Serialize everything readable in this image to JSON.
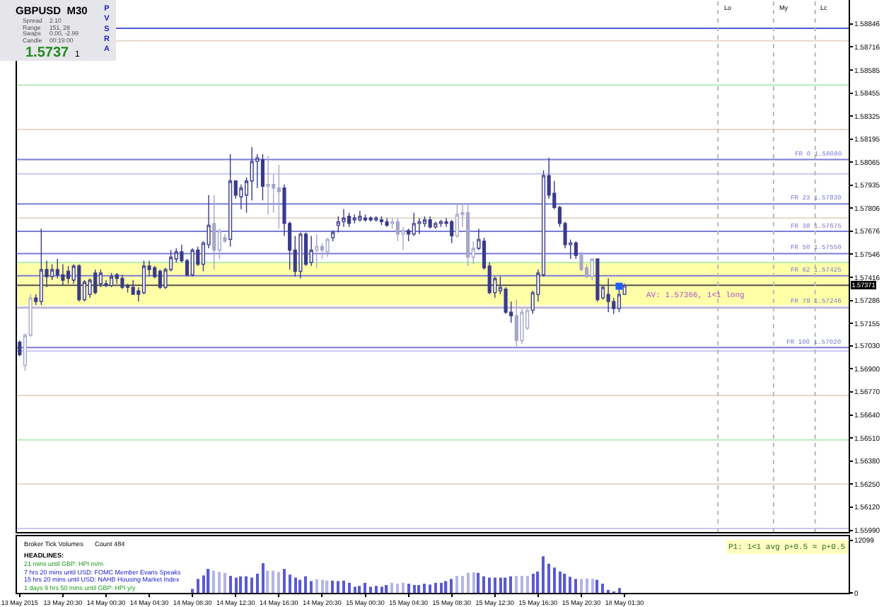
{
  "chart_data": [
    {
      "type": "candlestick",
      "title": "GBPUSD  M30",
      "annotations": [
        "Spread",
        "2.10",
        "Range",
        "151, 28",
        "Swaps",
        "0.00, -2.99",
        "Candle",
        "00:19:00",
        "1.5737",
        "1",
        "PVSRA",
        "Lo",
        "My",
        "Lc",
        {
          "text": "AV: 1.57366, 1<1 long",
          "y": 1.57366
        }
      ],
      "categories": [
        null,
        null,
        null,
        null,
        null,
        null,
        null,
        null,
        null,
        null,
        null,
        null,
        null,
        null,
        null,
        null,
        null,
        null,
        null,
        null,
        null,
        null,
        null,
        null,
        null,
        null,
        null,
        null,
        null,
        null,
        null,
        null,
        null,
        null,
        null,
        null,
        null,
        null,
        null,
        null,
        null,
        null,
        null,
        null,
        null,
        null,
        null,
        null,
        null,
        null,
        null,
        null,
        null,
        null,
        null,
        null,
        null,
        null,
        null,
        null,
        null,
        null,
        null,
        null,
        null,
        null,
        null,
        null,
        null,
        null,
        null,
        null,
        null,
        null,
        null,
        null,
        null,
        null,
        null,
        null,
        null,
        null,
        null,
        null,
        null,
        null,
        null,
        null,
        null,
        null,
        null,
        null,
        null,
        null,
        null,
        null,
        null,
        null,
        null,
        null,
        null,
        null,
        null,
        null,
        null,
        null,
        null,
        null,
        null,
        null,
        null,
        null,
        null,
        null,
        null,
        null,
        null,
        null,
        null,
        null,
        null,
        null,
        null,
        null,
        null,
        null,
        null,
        null,
        null,
        null,
        null,
        null,
        null,
        null,
        null,
        null,
        null,
        null,
        null,
        null,
        null,
        null,
        null,
        null,
        null,
        null,
        null,
        null,
        null,
        null,
        null,
        null,
        null,
        null
      ],
      "ohlc": [
        [
          1.5705,
          1.5706,
          1.5697,
          1.5698
        ],
        [
          1.5692,
          1.571,
          1.5689,
          1.5709
        ],
        [
          1.5709,
          1.5732,
          1.5708,
          1.573
        ],
        [
          1.573,
          1.5732,
          1.5726,
          1.5728
        ],
        [
          1.5728,
          1.5769,
          1.5726,
          1.5746
        ],
        [
          1.5746,
          1.5751,
          1.5736,
          1.5742
        ],
        [
          1.5742,
          1.5749,
          1.574,
          1.5746
        ],
        [
          1.5746,
          1.5752,
          1.5741,
          1.5743
        ],
        [
          1.5743,
          1.5749,
          1.5737,
          1.574
        ],
        [
          1.5745,
          1.5748,
          1.5738,
          1.5741
        ],
        [
          1.574,
          1.5749,
          1.5738,
          1.5748
        ],
        [
          1.5748,
          1.5749,
          1.5728,
          1.5729
        ],
        [
          1.5729,
          1.574,
          1.5728,
          1.5739
        ],
        [
          1.5732,
          1.5741,
          1.573,
          1.574
        ],
        [
          1.5744,
          1.5746,
          1.5732,
          1.5733
        ],
        [
          1.5738,
          1.5746,
          1.5736,
          1.5744
        ],
        [
          1.5738,
          1.574,
          1.5736,
          1.5737
        ],
        [
          1.5737,
          1.5744,
          1.5736,
          1.5742
        ],
        [
          1.5743,
          1.5744,
          1.5738,
          1.5741
        ],
        [
          1.5741,
          1.5743,
          1.5735,
          1.5736
        ],
        [
          1.5737,
          1.5738,
          1.5733,
          1.5736
        ],
        [
          1.5736,
          1.574,
          1.5732,
          1.5732
        ],
        [
          1.5734,
          1.5736,
          1.5728,
          1.5732
        ],
        [
          1.5733,
          1.5751,
          1.5732,
          1.5748
        ],
        [
          1.5748,
          1.5751,
          1.5742,
          1.5746
        ],
        [
          1.5747,
          1.5748,
          1.5741,
          1.5742
        ],
        [
          1.5745,
          1.5746,
          1.5735,
          1.5736
        ],
        [
          1.5736,
          1.5747,
          1.5735,
          1.5746
        ],
        [
          1.5746,
          1.5757,
          1.5745,
          1.5753
        ],
        [
          1.5752,
          1.5758,
          1.575,
          1.5756
        ],
        [
          1.5756,
          1.576,
          1.575,
          1.5751
        ],
        [
          1.5751,
          1.5752,
          1.5742,
          1.5743
        ],
        [
          1.5743,
          1.5758,
          1.5742,
          1.5757
        ],
        [
          1.5757,
          1.5759,
          1.5748,
          1.5749
        ],
        [
          1.5749,
          1.5762,
          1.5745,
          1.5761
        ],
        [
          1.576,
          1.5788,
          1.5758,
          1.5771
        ],
        [
          1.5772,
          1.5788,
          1.5746,
          1.5757
        ],
        [
          1.5757,
          1.5769,
          1.5752,
          1.5768
        ],
        [
          1.5764,
          1.5766,
          1.5761,
          1.5762
        ],
        [
          1.5763,
          1.5811,
          1.5759,
          1.5796
        ],
        [
          1.5796,
          1.5796,
          1.5786,
          1.5788
        ],
        [
          1.5787,
          1.5794,
          1.578,
          1.5792
        ],
        [
          1.5788,
          1.5798,
          1.5778,
          1.5796
        ],
        [
          1.5796,
          1.5815,
          1.5785,
          1.5807
        ],
        [
          1.5807,
          1.5811,
          1.5792,
          1.5809
        ],
        [
          1.5808,
          1.5811,
          1.5785,
          1.5793
        ],
        [
          1.5793,
          1.581,
          1.5777,
          1.5794
        ],
        [
          1.5794,
          1.58,
          1.5778,
          1.5792
        ],
        [
          1.5792,
          1.5805,
          1.5769,
          1.579
        ],
        [
          1.5792,
          1.5794,
          1.5765,
          1.5772
        ],
        [
          1.5772,
          1.5773,
          1.5746,
          1.5757
        ],
        [
          1.5757,
          1.5765,
          1.5742,
          1.5745
        ],
        [
          1.5745,
          1.5767,
          1.5741,
          1.5766
        ],
        [
          1.5766,
          1.5767,
          1.5748,
          1.5749
        ],
        [
          1.575,
          1.5765,
          1.5748,
          1.5757
        ],
        [
          1.5757,
          1.5766,
          1.5747,
          1.5759
        ],
        [
          1.5759,
          1.5761,
          1.5752,
          1.5757
        ],
        [
          1.5756,
          1.5764,
          1.5753,
          1.5763
        ],
        [
          1.5764,
          1.5768,
          1.5762,
          1.5767
        ],
        [
          1.5771,
          1.5776,
          1.5767,
          1.5773
        ],
        [
          1.5773,
          1.578,
          1.577,
          1.5775
        ],
        [
          1.5776,
          1.5778,
          1.577,
          1.5772
        ],
        [
          1.5774,
          1.5777,
          1.5772,
          1.5775
        ],
        [
          1.5774,
          1.5779,
          1.5773,
          1.5776
        ],
        [
          1.5775,
          1.5777,
          1.5773,
          1.5774
        ],
        [
          1.5775,
          1.5776,
          1.5773,
          1.5774
        ],
        [
          1.5774,
          1.5776,
          1.5773,
          1.5775
        ],
        [
          1.5774,
          1.5776,
          1.5771,
          1.5773
        ],
        [
          1.5773,
          1.5775,
          1.577,
          1.5771
        ],
        [
          1.5772,
          1.5775,
          1.5769,
          1.5773
        ],
        [
          1.5773,
          1.5775,
          1.5762,
          1.5766
        ],
        [
          1.5766,
          1.577,
          1.5757,
          1.5768
        ],
        [
          1.5768,
          1.5769,
          1.5762,
          1.5766
        ],
        [
          1.5766,
          1.5778,
          1.5765,
          1.5772
        ],
        [
          1.5772,
          1.5775,
          1.5766,
          1.5773
        ],
        [
          1.5772,
          1.5776,
          1.577,
          1.5774
        ],
        [
          1.5774,
          1.5776,
          1.5769,
          1.577
        ],
        [
          1.577,
          1.5773,
          1.5769,
          1.5772
        ],
        [
          1.5772,
          1.5774,
          1.577,
          1.5773
        ],
        [
          1.5773,
          1.5775,
          1.577,
          1.5772
        ],
        [
          1.5773,
          1.5774,
          1.5761,
          1.5765
        ],
        [
          1.5765,
          1.5783,
          1.5764,
          1.5777
        ],
        [
          1.5777,
          1.5783,
          1.577,
          1.5778
        ],
        [
          1.5778,
          1.5783,
          1.5748,
          1.5753
        ],
        [
          1.5753,
          1.5762,
          1.5749,
          1.5758
        ],
        [
          1.5758,
          1.5769,
          1.5757,
          1.5763
        ],
        [
          1.5762,
          1.5764,
          1.5746,
          1.5747
        ],
        [
          1.5748,
          1.575,
          1.5732,
          1.5733
        ],
        [
          1.5733,
          1.5742,
          1.573,
          1.5741
        ],
        [
          1.5734,
          1.5742,
          1.5732,
          1.5736
        ],
        [
          1.5735,
          1.5736,
          1.5721,
          1.5722
        ],
        [
          1.5722,
          1.5728,
          1.5716,
          1.572
        ],
        [
          1.572,
          1.5729,
          1.5702,
          1.5706
        ],
        [
          1.5706,
          1.5724,
          1.5704,
          1.5722
        ],
        [
          1.5713,
          1.5724,
          1.5712,
          1.5723
        ],
        [
          1.5723,
          1.5734,
          1.5721,
          1.5733
        ],
        [
          1.5732,
          1.5746,
          1.5728,
          1.5744
        ],
        [
          1.5743,
          1.5802,
          1.5742,
          1.5799
        ],
        [
          1.5799,
          1.5809,
          1.5786,
          1.5788
        ],
        [
          1.5789,
          1.5796,
          1.578,
          1.5781
        ],
        [
          1.5781,
          1.5782,
          1.577,
          1.5772
        ],
        [
          1.5772,
          1.5773,
          1.5758,
          1.576
        ],
        [
          1.576,
          1.5763,
          1.5752,
          1.5761
        ],
        [
          1.5761,
          1.5762,
          1.5752,
          1.5754
        ],
        [
          1.5754,
          1.5756,
          1.5745,
          1.5746
        ],
        [
          1.5747,
          1.5749,
          1.5741,
          1.5742
        ],
        [
          1.5742,
          1.5752,
          1.574,
          1.5752
        ],
        [
          1.5752,
          1.5752,
          1.5728,
          1.5729
        ],
        [
          1.573,
          1.5737,
          1.5729,
          1.5736
        ],
        [
          1.5732,
          1.5741,
          1.5722,
          1.5728
        ],
        [
          1.5728,
          1.573,
          1.5721,
          1.5724
        ],
        [
          1.5724,
          1.5736,
          1.5722,
          1.5732
        ],
        [
          1.5732,
          1.5738,
          1.5732,
          1.5737
        ],
        null,
        null,
        null,
        null,
        null,
        null,
        null,
        null,
        null,
        null,
        null,
        null,
        null,
        null,
        null,
        null,
        null,
        null,
        null,
        null,
        null,
        null,
        null,
        null,
        null,
        null,
        null,
        null,
        null,
        null,
        null,
        null,
        null,
        null,
        null,
        null,
        null,
        null,
        null,
        null,
        null
      ],
      "colors": [
        "#3a3a8c",
        "#a6a6cc",
        "#a6a6cc",
        "#3a3a8c",
        "#3a3a8c",
        "#3a3a8c",
        "#3a3a8c",
        "#3a3a8c",
        "#3a3a8c",
        "#3a3a8c",
        "#3a3a8c",
        "#3a3a8c",
        "#3a3a8c",
        "#3a3a8c",
        "#3a3a8c",
        "#3a3a8c",
        "#3a3a8c",
        "#3a3a8c",
        "#3a3a8c",
        "#3a3a8c",
        "#3a3a8c",
        "#3a3a8c",
        "#3a3a8c",
        "#3a3a8c",
        "#3a3a8c",
        "#3a3a8c",
        "#3a3a8c",
        "#3a3a8c",
        "#3a3a8c",
        "#3a3a8c",
        "#3a3a8c",
        "#3a3a8c",
        "#3a3a8c",
        "#3a3a8c",
        "#3a3a8c",
        "#3a3a8c",
        "#a6a6cc",
        "#a6a6cc",
        "#a6a6cc",
        "#3a3a8c",
        "#3a3a8c",
        "#3a3a8c",
        "#3a3a8c",
        "#3a3a8c",
        "#3a3a8c",
        "#3a3a8c",
        "#a6a6cc",
        "#a6a6cc",
        "#a6a6cc",
        "#3a3a8c",
        "#3a3a8c",
        "#3a3a8c",
        "#3a3a8c",
        "#3a3a8c",
        "#3a3a8c",
        "#a6a6cc",
        "#a6a6cc",
        "#a6a6cc",
        "#3a3a8c",
        "#3a3a8c",
        "#3a3a8c",
        "#3a3a8c",
        "#3a3a8c",
        "#3a3a8c",
        "#3a3a8c",
        "#3a3a8c",
        "#3a3a8c",
        "#3a3a8c",
        "#3a3a8c",
        "#a6a6cc",
        "#a6a6cc",
        "#a6a6cc",
        "#3a3a8c",
        "#3a3a8c",
        "#3a3a8c",
        "#3a3a8c",
        "#3a3a8c",
        "#3a3a8c",
        "#3a3a8c",
        "#3a3a8c",
        "#3a3a8c",
        "#a6a6cc",
        "#a6a6cc",
        "#a6a6cc",
        "#a6a6cc",
        "#3a3a8c",
        "#3a3a8c",
        "#3a3a8c",
        "#3a3a8c",
        "#3a3a8c",
        "#3a3a8c",
        "#3a3a8c",
        "#a6a6cc",
        "#a6a6cc",
        "#a6a6cc",
        "#3a3a8c",
        "#3a3a8c",
        "#3a3a8c",
        "#3a3a8c",
        "#3a3a8c",
        "#3a3a8c",
        "#3a3a8c",
        "#3a3a8c",
        "#3a3a8c",
        "#a6a6cc",
        "#a6a6cc",
        "#a6a6cc",
        "#3a3a8c",
        "#3a3a8c",
        "#3a3a8c",
        "#3a3a8c",
        "#3a3a8c",
        "#3a3a8c",
        "#3a3a8c",
        "#3a3a8c",
        "#3a3a8c",
        "#3a3a8c",
        "#3a3a8c",
        "#3a3a8c",
        "#3a3a8c",
        "#3a3a8c",
        "#3a3a8c",
        "#3a3a8c",
        "#3a3a8c",
        "#3a3a8c",
        "#3a3a8c",
        "#3a3a8c",
        "#3a3a8c",
        "#3a3a8c",
        "#3a3a8c",
        "#3a3a8c",
        "#3a3a8c",
        "#3a3a8c",
        "#3a3a8c",
        "#3a3a8c",
        "#3a3a8c",
        "#3a3a8c",
        "#3a3a8c",
        "#3a3a8c",
        "#3a3a8c",
        "#3a3a8c",
        "#3a3a8c",
        "#3a3a8c",
        "#3a3a8c",
        "#3a3a8c",
        "#3a3a8c",
        "#3a3a8c",
        "#3a3a8c",
        "#3a3a8c",
        "#3a3a8c",
        "#3a3a8c",
        "#3a3a8c",
        "#3a3a8c",
        "#3a3a8c"
      ],
      "series": [
        {
          "type": "scatter",
          "marker": "square",
          "color": "#1f5fff",
          "values": [
            null,
            null,
            null,
            null,
            null,
            null,
            null,
            null,
            null,
            null,
            null,
            null,
            null,
            null,
            null,
            null,
            null,
            null,
            null,
            null,
            null,
            null,
            null,
            null,
            null,
            null,
            null,
            null,
            null,
            null,
            null,
            null,
            null,
            null,
            null,
            null,
            null,
            null,
            null,
            null,
            null,
            null,
            null,
            null,
            null,
            null,
            null,
            null,
            null,
            null,
            null,
            null,
            null,
            null,
            null,
            null,
            null,
            null,
            null,
            null,
            null,
            null,
            null,
            null,
            null,
            null,
            null,
            null,
            null,
            null,
            null,
            null,
            null,
            null,
            null,
            null,
            null,
            null,
            null,
            null,
            null,
            null,
            null,
            null,
            null,
            null,
            null,
            null,
            null,
            null,
            null,
            null,
            null,
            null,
            null,
            null,
            null,
            null,
            null,
            null,
            null,
            null,
            null,
            null,
            null,
            null,
            null,
            null,
            null,
            null,
            null,
            1.57366,
            null,
            null,
            null,
            null,
            null,
            null,
            null,
            null,
            null,
            null,
            null,
            null,
            null,
            null,
            null,
            null,
            null,
            null,
            null,
            null,
            null,
            null,
            null,
            null,
            null,
            null,
            null,
            null,
            null,
            null,
            null,
            null,
            null,
            null,
            null,
            null,
            null,
            null,
            null,
            null,
            null,
            null
          ]
        }
      ],
      "ylim": [
        1.5598,
        1.5898
      ],
      "yticks": [
        1.58846,
        1.58716,
        1.58585,
        1.58455,
        1.58325,
        1.58195,
        1.58065,
        1.57935,
        1.57806,
        1.57676,
        1.57546,
        1.57416,
        1.57286,
        1.57155,
        {
          "value": 1.5703,
          "label": "1.57030"
        },
        {
          "value": 1.569,
          "label": "1.56900"
        },
        {
          "value": 1.5677,
          "label": "1.56770"
        },
        {
          "value": 1.5664,
          "label": "1.56640"
        },
        {
          "value": 1.5651,
          "label": "1.56510"
        },
        {
          "value": 1.5638,
          "label": "1.56380"
        },
        {
          "value": 1.5625,
          "label": "1.56250"
        },
        {
          "value": 1.5612,
          "label": "1.56120"
        },
        {
          "value": 1.5599,
          "label": "1.55990"
        }
      ],
      "ref_lines": [
        {
          "axis": "y",
          "value": 1.57371,
          "label": "1.57371",
          "color": "#505050"
        },
        {
          "axis": "y",
          "value": 1.5808,
          "label": "FR 0 1.58080",
          "color": "#7b7bd8"
        },
        {
          "axis": "y",
          "value": 1.5783,
          "label": "FR 23 1.57830",
          "color": "#7b7bd8"
        },
        {
          "axis": "y",
          "value": 1.57675,
          "label": "FR 38 1.57675",
          "color": "#7b7bd8"
        },
        {
          "axis": "y",
          "value": 1.5755,
          "label": "FR 50 1.57550",
          "color": "#7b7bd8"
        },
        {
          "axis": "y",
          "value": 1.57425,
          "label": "FR 62 1.57425",
          "color": "#7b7bd8"
        },
        {
          "axis": "y",
          "value": 1.57246,
          "label": "FR 79 1.57246",
          "color": "#7b7bd8"
        },
        {
          "axis": "y",
          "value": 1.5702,
          "label": "FR 100 1.57020",
          "color": "#7b7bd8"
        },
        {
          "axis": "y",
          "value": 1.5882,
          "color": "#4b58d8"
        },
        {
          "axis": "y",
          "value": 1.5875,
          "color": "#e4d9c6"
        },
        {
          "axis": "y",
          "value": 1.585,
          "color": "#b6ecb6"
        },
        {
          "axis": "y",
          "value": 1.5825,
          "color": "#e4d9c6"
        },
        {
          "axis": "y",
          "value": 1.58,
          "color": "#c8c8f4"
        },
        {
          "axis": "y",
          "value": 1.5775,
          "color": "#e4d9c6"
        },
        {
          "axis": "y",
          "value": 1.575,
          "color": "#b6ecb6"
        },
        {
          "axis": "y",
          "value": 1.5725,
          "color": "#e4d9c6"
        },
        {
          "axis": "y",
          "value": 1.57,
          "color": "#c8c8f4"
        },
        {
          "axis": "y",
          "value": 1.5675,
          "color": "#e4d9c6"
        },
        {
          "axis": "y",
          "value": 1.565,
          "color": "#b6ecb6"
        },
        {
          "axis": "y",
          "value": 1.5625,
          "color": "#e4d9c6"
        },
        {
          "axis": "y",
          "value": 1.56,
          "color": "#c8c8f4"
        }
      ],
      "bands": [
        {
          "axis": "y",
          "from": 1.5726,
          "to": 1.575,
          "color": "#ffffa8"
        }
      ],
      "tick_labels": "y"
    },
    {
      "type": "bar",
      "title": "Broker Tick Volumes",
      "annotations": [
        "Count 484",
        "HEADLINES:",
        "21 mins until GBP: HPI m/m",
        "7 hrs 20 mins until USD: FOMC Member Evans Speaks",
        "15 hrs 20 mins until USD: NAHB Housing Market Index",
        "1 days 9 hrs 50 mins until GBP: HPI y/y",
        "P1: 1<1 avg p+0.5 = p+0.5"
      ],
      "categories": [
        "13 May 2015",
        null,
        null,
        null,
        null,
        null,
        null,
        null,
        "13 May 20:30",
        null,
        null,
        null,
        null,
        null,
        null,
        null,
        "14 May 00:30",
        null,
        null,
        null,
        null,
        null,
        null,
        null,
        "14 May 04:30",
        null,
        null,
        null,
        null,
        null,
        null,
        null,
        "14 May 08:30",
        null,
        null,
        null,
        null,
        null,
        null,
        null,
        "14 May 12:30",
        null,
        null,
        null,
        null,
        null,
        null,
        null,
        "14 May 16:30",
        null,
        null,
        null,
        null,
        null,
        null,
        null,
        "14 May 20:30",
        null,
        null,
        null,
        null,
        null,
        null,
        null,
        "15 May 00:30",
        null,
        null,
        null,
        null,
        null,
        null,
        null,
        "15 May 04:30",
        null,
        null,
        null,
        null,
        null,
        null,
        null,
        "15 May 08:30",
        null,
        null,
        null,
        null,
        null,
        null,
        null,
        "15 May 12:30",
        null,
        null,
        null,
        null,
        null,
        null,
        null,
        "15 May 16:30",
        null,
        null,
        null,
        null,
        null,
        null,
        null,
        "15 May 20:30",
        null,
        null,
        null,
        null,
        null,
        null,
        null,
        "18 May 01:30",
        null,
        null,
        null,
        null,
        null,
        null,
        null,
        null,
        null,
        null,
        null,
        null,
        null,
        null,
        null,
        null,
        null,
        null,
        null,
        null,
        null,
        null,
        null,
        null,
        null,
        null,
        null,
        null,
        null,
        null,
        null,
        null,
        null,
        null,
        null,
        null,
        null,
        null,
        null,
        null,
        null
      ],
      "values": [
        null,
        null,
        null,
        null,
        null,
        null,
        null,
        null,
        null,
        null,
        null,
        null,
        null,
        null,
        null,
        null,
        null,
        null,
        null,
        null,
        null,
        null,
        null,
        null,
        null,
        null,
        null,
        null,
        null,
        null,
        null,
        null,
        900,
        3200,
        4000,
        5500,
        5100,
        4800,
        4600,
        3900,
        3500,
        3800,
        3800,
        3500,
        4400,
        6800,
        5100,
        5100,
        4800,
        5500,
        4200,
        3500,
        3000,
        3800,
        2700,
        3100,
        3000,
        2800,
        2800,
        2700,
        2800,
        2300,
        1400,
        1600,
        2300,
        1400,
        1600,
        1400,
        1800,
        2300,
        2100,
        2300,
        2100,
        1800,
        1800,
        2100,
        1900,
        2300,
        2300,
        2700,
        3200,
        3900,
        3900,
        4600,
        4700,
        4600,
        3800,
        3500,
        3500,
        3500,
        3500,
        3800,
        3900,
        3900,
        3900,
        4400,
        4900,
        8400,
        6700,
        5800,
        4900,
        4400,
        3700,
        3200,
        3200,
        3300,
        3200,
        3000,
        2100,
        700,
        200,
        1100,
        null,
        null,
        null,
        null,
        null,
        null,
        null,
        null,
        null,
        null,
        null,
        null,
        null,
        null,
        null,
        null,
        null,
        null,
        null,
        null,
        null,
        null,
        null,
        null,
        null,
        null,
        null,
        null,
        null,
        null,
        null,
        null,
        null,
        null,
        null,
        null,
        null,
        null,
        null,
        null,
        null,
        null
      ],
      "colors": [
        "#5a5ad2",
        "#b4b4e6",
        "#b4b4e6",
        "#5a5ad2",
        "#5a5ad2",
        "#5a5ad2",
        "#5a5ad2",
        "#5a5ad2",
        "#5a5ad2",
        "#5a5ad2",
        "#5a5ad2",
        "#5a5ad2",
        "#5a5ad2",
        "#5a5ad2",
        "#5a5ad2",
        "#5a5ad2",
        "#5a5ad2",
        "#5a5ad2",
        "#5a5ad2",
        "#5a5ad2",
        "#5a5ad2",
        "#5a5ad2",
        "#5a5ad2",
        "#5a5ad2",
        "#5a5ad2",
        "#5a5ad2",
        "#5a5ad2",
        "#5a5ad2",
        "#5a5ad2",
        "#5a5ad2",
        "#5a5ad2",
        "#5a5ad2",
        "#5a5ad2",
        "#5a5ad2",
        "#5a5ad2",
        "#5a5ad2",
        "#b4b4e6",
        "#b4b4e6",
        "#b4b4e6",
        "#5a5ad2",
        "#5a5ad2",
        "#5a5ad2",
        "#5a5ad2",
        "#5a5ad2",
        "#5a5ad2",
        "#5a5ad2",
        "#b4b4e6",
        "#b4b4e6",
        "#b4b4e6",
        "#5a5ad2",
        "#5a5ad2",
        "#5a5ad2",
        "#5a5ad2",
        "#5a5ad2",
        "#5a5ad2",
        "#b4b4e6",
        "#b4b4e6",
        "#b4b4e6",
        "#5a5ad2",
        "#5a5ad2",
        "#5a5ad2",
        "#5a5ad2",
        "#5a5ad2",
        "#5a5ad2",
        "#5a5ad2",
        "#5a5ad2",
        "#5a5ad2",
        "#5a5ad2",
        "#5a5ad2",
        "#b4b4e6",
        "#b4b4e6",
        "#b4b4e6",
        "#5a5ad2",
        "#5a5ad2",
        "#5a5ad2",
        "#5a5ad2",
        "#5a5ad2",
        "#5a5ad2",
        "#5a5ad2",
        "#5a5ad2",
        "#5a5ad2",
        "#b4b4e6",
        "#b4b4e6",
        "#b4b4e6",
        "#b4b4e6",
        "#5a5ad2",
        "#5a5ad2",
        "#5a5ad2",
        "#5a5ad2",
        "#5a5ad2",
        "#5a5ad2",
        "#5a5ad2",
        "#b4b4e6",
        "#b4b4e6",
        "#b4b4e6",
        "#5a5ad2",
        "#5a5ad2",
        "#5a5ad2",
        "#5a5ad2",
        "#5a5ad2",
        "#5a5ad2",
        "#5a5ad2",
        "#5a5ad2",
        "#5a5ad2",
        "#b4b4e6",
        "#b4b4e6",
        "#b4b4e6",
        "#5a5ad2",
        "#5a5ad2",
        "#5a5ad2",
        "#5a5ad2",
        "#5a5ad2",
        "#5a5ad2",
        "#5a5ad2",
        "#5a5ad2",
        "#5a5ad2",
        "#5a5ad2",
        "#5a5ad2",
        "#5a5ad2",
        "#5a5ad2",
        "#5a5ad2",
        "#5a5ad2",
        "#5a5ad2",
        "#5a5ad2",
        "#5a5ad2",
        "#5a5ad2",
        "#5a5ad2",
        "#5a5ad2",
        "#5a5ad2",
        "#5a5ad2",
        "#5a5ad2",
        "#5a5ad2",
        "#5a5ad2",
        "#5a5ad2",
        "#5a5ad2",
        "#5a5ad2",
        "#5a5ad2",
        "#5a5ad2",
        "#5a5ad2",
        "#5a5ad2",
        "#5a5ad2",
        "#5a5ad2",
        "#5a5ad2",
        "#5a5ad2",
        "#5a5ad2",
        "#5a5ad2",
        "#5a5ad2",
        "#5a5ad2",
        "#5a5ad2",
        "#5a5ad2",
        "#5a5ad2",
        "#5a5ad2",
        "#5a5ad2",
        "#5a5ad2"
      ],
      "ylim": [
        0,
        13000
      ],
      "yticks": [
        0,
        12099
      ]
    }
  ]
}
